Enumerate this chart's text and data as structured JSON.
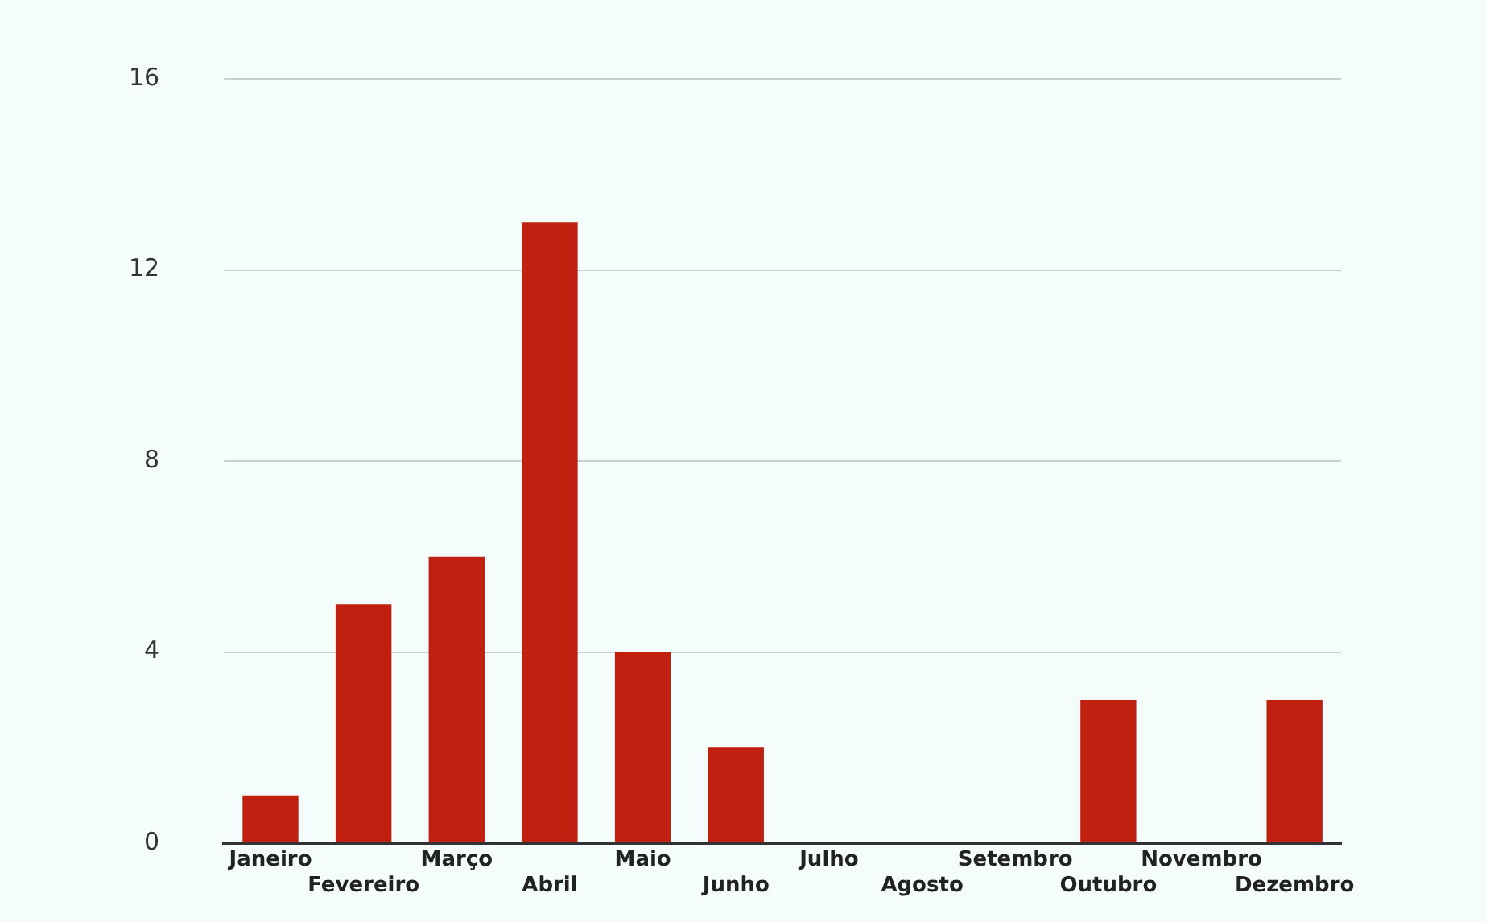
{
  "chart_data": {
    "type": "bar",
    "categories": [
      "Janeiro",
      "Fevereiro",
      "Março",
      "Abril",
      "Maio",
      "Junho",
      "Julho",
      "Agosto",
      "Setembro",
      "Outubro",
      "Novembro",
      "Dezembro"
    ],
    "values": [
      1,
      5,
      6,
      13,
      4,
      2,
      0,
      0,
      0,
      3,
      0,
      3
    ],
    "color": "#c0200f",
    "ylim": [
      0,
      16
    ],
    "yticks": [
      0,
      4,
      8,
      12,
      16
    ],
    "grid": "y"
  }
}
